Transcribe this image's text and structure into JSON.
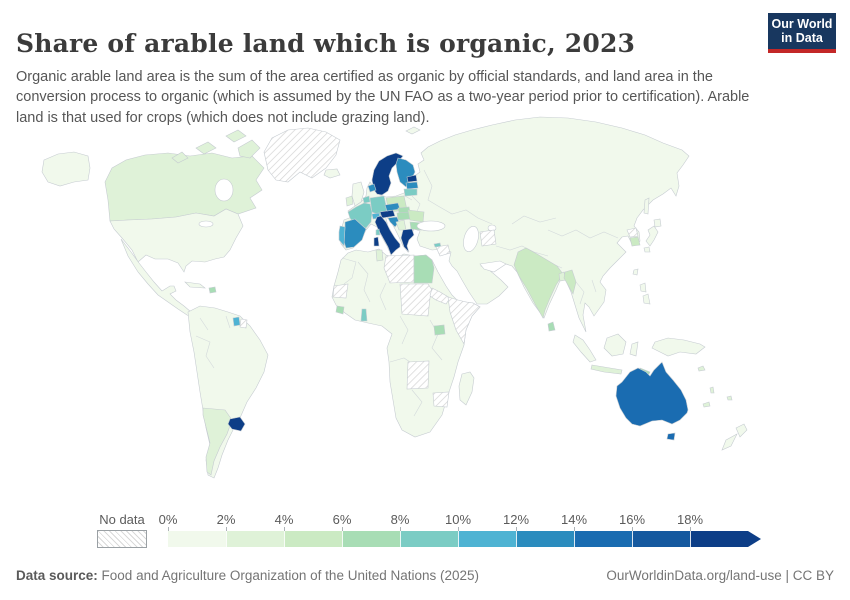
{
  "header": {
    "title": "Share of arable land which is organic, 2023",
    "subtitle": "Organic arable land area is the sum of the area certified as organic by official standards, and land area in the conversion process to organic (which is assumed by the UN FAO as a two-year period prior to certification). Arable land is that used for crops (which does not include grazing land).",
    "logo": {
      "line1": "Our World",
      "line2": "in Data",
      "navy": "#18375f",
      "red": "#c32727"
    }
  },
  "legend": {
    "no_data_label": "No data",
    "ticks": [
      "0%",
      "2%",
      "4%",
      "6%",
      "8%",
      "10%",
      "12%",
      "14%",
      "16%",
      "18%"
    ],
    "bin_colors": [
      "#f1f9ec",
      "#dff2d8",
      "#cbeac3",
      "#a8ddb5",
      "#7bccc4",
      "#4eb3d3",
      "#2b8cbe",
      "#1a6cb1",
      "#15599f",
      "#0d3e87"
    ]
  },
  "map": {
    "default_fill": "#f1f9ec",
    "border_color": "#c6ccd1",
    "no_data_pattern": "diagonal-hatch",
    "fills": {
      "canada": "#dff2d8",
      "hispaniola": "#a8ddb5",
      "greenland": "url(#hatch)",
      "argentina": "#dff2d8",
      "uruguay": "#0d3e87",
      "suriname": "#4eb3d3",
      "french_guiana": "url(#hatch)",
      "ireland": "#dff2d8",
      "scandinavia": "#0d3e87",
      "finland": "#2b8cbe",
      "denmark": "#2b8cbe",
      "estonia": "#0d3e87",
      "latvia": "#2b8cbe",
      "lithuania": "#7bccc4",
      "poland": "#cbeac3",
      "germany": "#7bccc4",
      "benelux": "#7bccc4",
      "france": "#7bccc4",
      "switzerland": "#4eb3d3",
      "austria": "#0d3e87",
      "czechia": "#2b8cbe",
      "slovakia": "#a8ddb5",
      "hungary": "#a8ddb5",
      "croatia_slovenia": "#2b8cbe",
      "serbia_bosnia": "#dff2d8",
      "romania": "#cbeac3",
      "bulgaria": "#a8ddb5",
      "greece": "#0d3e87",
      "crete": "#0d3e87",
      "italy": "#0d3e87",
      "sicily": "#0d3e87",
      "sardinia": "#0d3e87",
      "corsica": "#7bccc4",
      "spain": "#2b8cbe",
      "portugal": "#4eb3d3",
      "tunisia": "#dff2d8",
      "western_sahara": "url(#hatch)",
      "libya": "url(#hatch)",
      "egypt": "#a8ddb5",
      "sudan": "url(#hatch)",
      "eritrea": "url(#hatch)",
      "somalia": "url(#hatch)",
      "uganda": "#a8ddb5",
      "angola": "url(#hatch)",
      "zimbabwe": "url(#hatch)",
      "togo": "#7bccc4",
      "sierra_leone": "#a8ddb5",
      "cyprus": "#7bccc4",
      "syria": "url(#hatch)",
      "turkmenistan": "url(#hatch)",
      "india": "#cbeac3",
      "sri_lanka": "#a8ddb5",
      "myanmar": "#cbeac3",
      "bangladesh": "#dff2d8",
      "north_korea": "url(#hatch)",
      "south_korea": "#cbeac3",
      "java": "#dff2d8",
      "timor": "#a8ddb5",
      "australia": "#1a6cb1",
      "tasmania": "#1a6cb1",
      "new_caledonia": "#dff2d8",
      "vanuatu": "#dff2d8",
      "fiji": "#dff2d8",
      "solomon": "#dff2d8"
    }
  },
  "chart_data": {
    "type": "choropleth",
    "title": "Share of arable land which is organic, 2023",
    "unit": "%",
    "legend_bins": [
      "0-2%",
      "2-4%",
      "4-6%",
      "6-8%",
      "8-10%",
      "10-12%",
      "12-14%",
      "14-16%",
      "16-18%",
      "18%+",
      "No data"
    ],
    "values": {
      "Uruguay": "18%+",
      "Italy": "18%+",
      "Austria": "18%+",
      "Sweden": "18%+",
      "Norway": "18%+",
      "Estonia": "18%+",
      "Greece": "18%+",
      "Australia": "14-16%",
      "Spain": "12-14%",
      "Finland": "12-14%",
      "Czechia": "12-14%",
      "Denmark": "12-14%",
      "Latvia": "12-14%",
      "Croatia": "12-14%",
      "Slovenia": "12-14%",
      "Portugal": "10-12%",
      "Switzerland": "10-12%",
      "Suriname": "10-12%",
      "France": "8-10%",
      "Germany": "8-10%",
      "Lithuania": "8-10%",
      "Netherlands": "8-10%",
      "Belgium": "8-10%",
      "Togo": "8-10%",
      "Cyprus": "8-10%",
      "Hungary": "6-8%",
      "Bulgaria": "6-8%",
      "Slovakia": "6-8%",
      "Egypt": "6-8%",
      "Uganda": "6-8%",
      "Sierra Leone": "6-8%",
      "Sri Lanka": "6-8%",
      "Dominican Republic": "6-8%",
      "Timor-Leste": "6-8%",
      "India": "4-6%",
      "Poland": "4-6%",
      "Romania": "4-6%",
      "Myanmar": "4-6%",
      "South Korea": "4-6%",
      "Canada": "2-4%",
      "Argentina": "2-4%",
      "Ireland": "2-4%",
      "Tunisia": "2-4%",
      "Serbia": "2-4%",
      "Bangladesh": "2-4%",
      "Indonesia": "2-4%",
      "United States": "0-2%",
      "Mexico": "0-2%",
      "Brazil": "0-2%",
      "Russia": "0-2%",
      "China": "0-2%",
      "Rest of world": "0-2%",
      "Greenland": "No data",
      "French Guiana": "No data",
      "Western Sahara": "No data",
      "Libya": "No data",
      "Sudan": "No data",
      "Eritrea": "No data",
      "Djibouti": "No data",
      "Somalia": "No data",
      "Angola": "No data",
      "Zimbabwe": "No data",
      "Syria": "No data",
      "Turkmenistan": "No data",
      "North Korea": "No data"
    }
  },
  "footer": {
    "source_label": "Data source:",
    "source": "Food and Agriculture Organization of the United Nations (2025)",
    "link": "OurWorldinData.org/land-use",
    "separator": " | ",
    "license": "CC BY"
  }
}
